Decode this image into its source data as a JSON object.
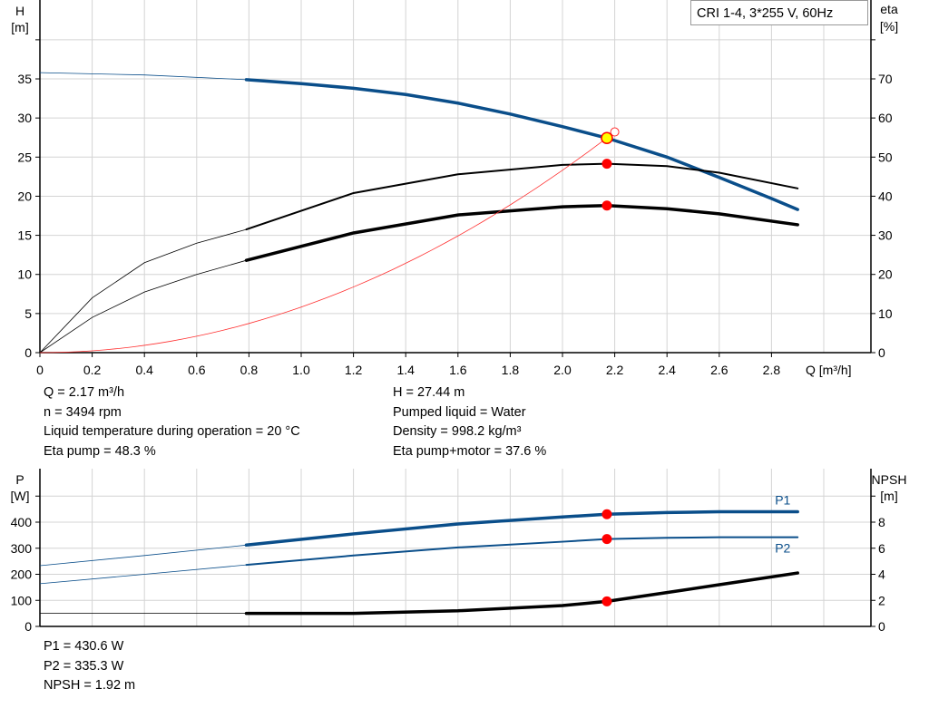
{
  "legend_title": "CRI 1-4, 3*255 V, 60Hz",
  "chart_data": [
    {
      "type": "line",
      "x_label": "Q [m³/h]",
      "xlim": [
        0,
        3.2
      ],
      "x_ticks": [
        0,
        0.2,
        0.4,
        0.6,
        0.8,
        1.0,
        1.2,
        1.4,
        1.6,
        1.8,
        2.0,
        2.2,
        2.4,
        2.6,
        2.8
      ],
      "y_left": {
        "label_top": "H",
        "label_unit": "[m]",
        "ylim": [
          0,
          45
        ],
        "ticks": [
          0,
          5,
          10,
          15,
          20,
          25,
          30,
          35
        ]
      },
      "y_right": {
        "label_top": "eta",
        "label_unit": "[%]",
        "ylim": [
          0,
          90
        ],
        "ticks": [
          0,
          10,
          20,
          30,
          40,
          50,
          60,
          70
        ]
      },
      "grid": true,
      "series": [
        {
          "id": "H",
          "axis": "left",
          "color": "#0a4e8a",
          "thick_from": 0.79,
          "x": [
            0,
            0.4,
            0.79,
            1.0,
            1.2,
            1.4,
            1.6,
            1.8,
            2.0,
            2.17,
            2.4,
            2.6,
            2.8,
            2.9
          ],
          "y": [
            35.8,
            35.5,
            34.9,
            34.4,
            33.8,
            33.0,
            31.9,
            30.5,
            28.9,
            27.44,
            25.0,
            22.4,
            19.7,
            18.3
          ]
        },
        {
          "id": "eta_pump",
          "axis": "right",
          "color": "#000000",
          "thick_from": 0.79,
          "width": 2,
          "x": [
            0,
            0.2,
            0.4,
            0.6,
            0.79,
            1.2,
            1.6,
            2.0,
            2.17,
            2.4,
            2.6,
            2.9
          ],
          "y": [
            0,
            14,
            23,
            28,
            31.5,
            40.8,
            45.6,
            48,
            48.3,
            47.7,
            46,
            42
          ]
        },
        {
          "id": "eta_pump_motor",
          "axis": "right",
          "color": "#000000",
          "thick_from": 0.79,
          "width": 3.5,
          "x": [
            0,
            0.2,
            0.4,
            0.6,
            0.79,
            1.2,
            1.6,
            2.0,
            2.17,
            2.4,
            2.6,
            2.9
          ],
          "y": [
            0,
            9,
            15.5,
            20,
            23.6,
            30.6,
            35.2,
            37.3,
            37.6,
            36.8,
            35.5,
            32.7
          ]
        },
        {
          "id": "system",
          "axis": "left",
          "color": "#ff3030",
          "system_k": 5.83,
          "x_end": 2.2
        }
      ],
      "duty_points": [
        {
          "axis": "left",
          "x": 2.17,
          "y": 27.44,
          "color": "#ffff00"
        },
        {
          "axis": "right",
          "x": 2.17,
          "y": 48.3
        },
        {
          "axis": "right",
          "x": 2.17,
          "y": 37.6
        }
      ]
    },
    {
      "type": "line",
      "xlim": [
        0,
        3.2
      ],
      "y_left": {
        "label_top": "P",
        "label_unit": "[W]",
        "ylim": [
          0,
          600
        ],
        "ticks": [
          0,
          100,
          200,
          300,
          400,
          500
        ],
        "labels": [
          "0",
          "100",
          "200",
          "300",
          "400",
          ""
        ]
      },
      "y_right": {
        "label_top": "NPSH",
        "label_unit": "[m]",
        "ylim": [
          0,
          12
        ],
        "ticks": [
          0,
          2,
          4,
          6,
          8,
          10
        ],
        "labels": [
          "0",
          "2",
          "4",
          "6",
          "8",
          ""
        ]
      },
      "grid": true,
      "series": [
        {
          "id": "P1",
          "name": "P1",
          "axis": "left",
          "color": "#0a4e8a",
          "width": 3.5,
          "thick_from": 0.79,
          "x": [
            0,
            0.4,
            0.79,
            1.2,
            1.6,
            2.0,
            2.17,
            2.4,
            2.6,
            2.9
          ],
          "y": [
            233,
            272,
            312,
            355,
            393,
            420,
            430.6,
            437,
            440,
            440
          ]
        },
        {
          "id": "P2",
          "name": "P2",
          "axis": "left",
          "color": "#0a4e8a",
          "width": 2,
          "thick_from": 0.79,
          "x": [
            0,
            0.4,
            0.79,
            1.2,
            1.6,
            2.0,
            2.17,
            2.4,
            2.6,
            2.9
          ],
          "y": [
            164,
            200,
            236,
            272,
            303,
            325,
            335.3,
            340,
            342,
            342
          ]
        },
        {
          "id": "NPSH",
          "axis": "right",
          "color": "#000000",
          "width": 3.5,
          "thick_from": 0.79,
          "x": [
            0,
            0.79,
            1.2,
            1.6,
            2.0,
            2.17,
            2.4,
            2.6,
            2.9
          ],
          "y": [
            1.0,
            1.0,
            1.0,
            1.2,
            1.6,
            1.92,
            2.6,
            3.2,
            4.1
          ]
        }
      ],
      "duty_points": [
        {
          "axis": "left",
          "x": 2.17,
          "y": 430.6
        },
        {
          "axis": "left",
          "x": 2.17,
          "y": 335.3
        },
        {
          "axis": "right",
          "x": 2.17,
          "y": 1.92
        }
      ]
    }
  ],
  "info_left": [
    "Q = 2.17 m³/h",
    "n = 3494 rpm",
    "Liquid temperature during operation = 20 °C",
    "Eta pump = 48.3 %"
  ],
  "info_right": [
    "H = 27.44 m",
    "Pumped liquid = Water",
    "Density = 998.2 kg/m³",
    "Eta pump+motor = 37.6 %"
  ],
  "info_bottom": [
    "P1 = 430.6 W",
    "P2 = 335.3 W",
    "NPSH = 1.92 m"
  ]
}
